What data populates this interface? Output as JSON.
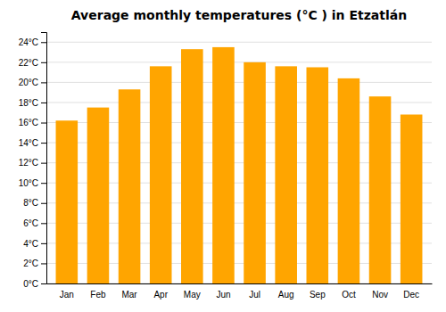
{
  "chart_data": {
    "type": "bar",
    "title": "Average monthly temperatures (°C ) in Etzatlán",
    "categories": [
      "Jan",
      "Feb",
      "Mar",
      "Apr",
      "May",
      "Jun",
      "Jul",
      "Aug",
      "Sep",
      "Oct",
      "Nov",
      "Dec"
    ],
    "values": [
      16.2,
      17.5,
      19.3,
      21.6,
      23.3,
      23.5,
      22.0,
      21.6,
      21.5,
      20.4,
      18.6,
      16.8
    ],
    "color": "#FFA500",
    "ylim": [
      0,
      25
    ],
    "yticks": [
      {
        "value": 0,
        "label": "0°C"
      },
      {
        "value": 2,
        "label": "2°C"
      },
      {
        "value": 4,
        "label": "4°C"
      },
      {
        "value": 6,
        "label": "6°C"
      },
      {
        "value": 8,
        "label": "8°C"
      },
      {
        "value": 10,
        "label": "10°C"
      },
      {
        "value": 12,
        "label": "12°C"
      },
      {
        "value": 14,
        "label": "14°C"
      },
      {
        "value": 16,
        "label": "16°C"
      },
      {
        "value": 18,
        "label": "18°C"
      },
      {
        "value": 20,
        "label": "20°C"
      },
      {
        "value": 22,
        "label": "22°C"
      },
      {
        "value": 24,
        "label": "24°C"
      }
    ],
    "grid": true
  }
}
